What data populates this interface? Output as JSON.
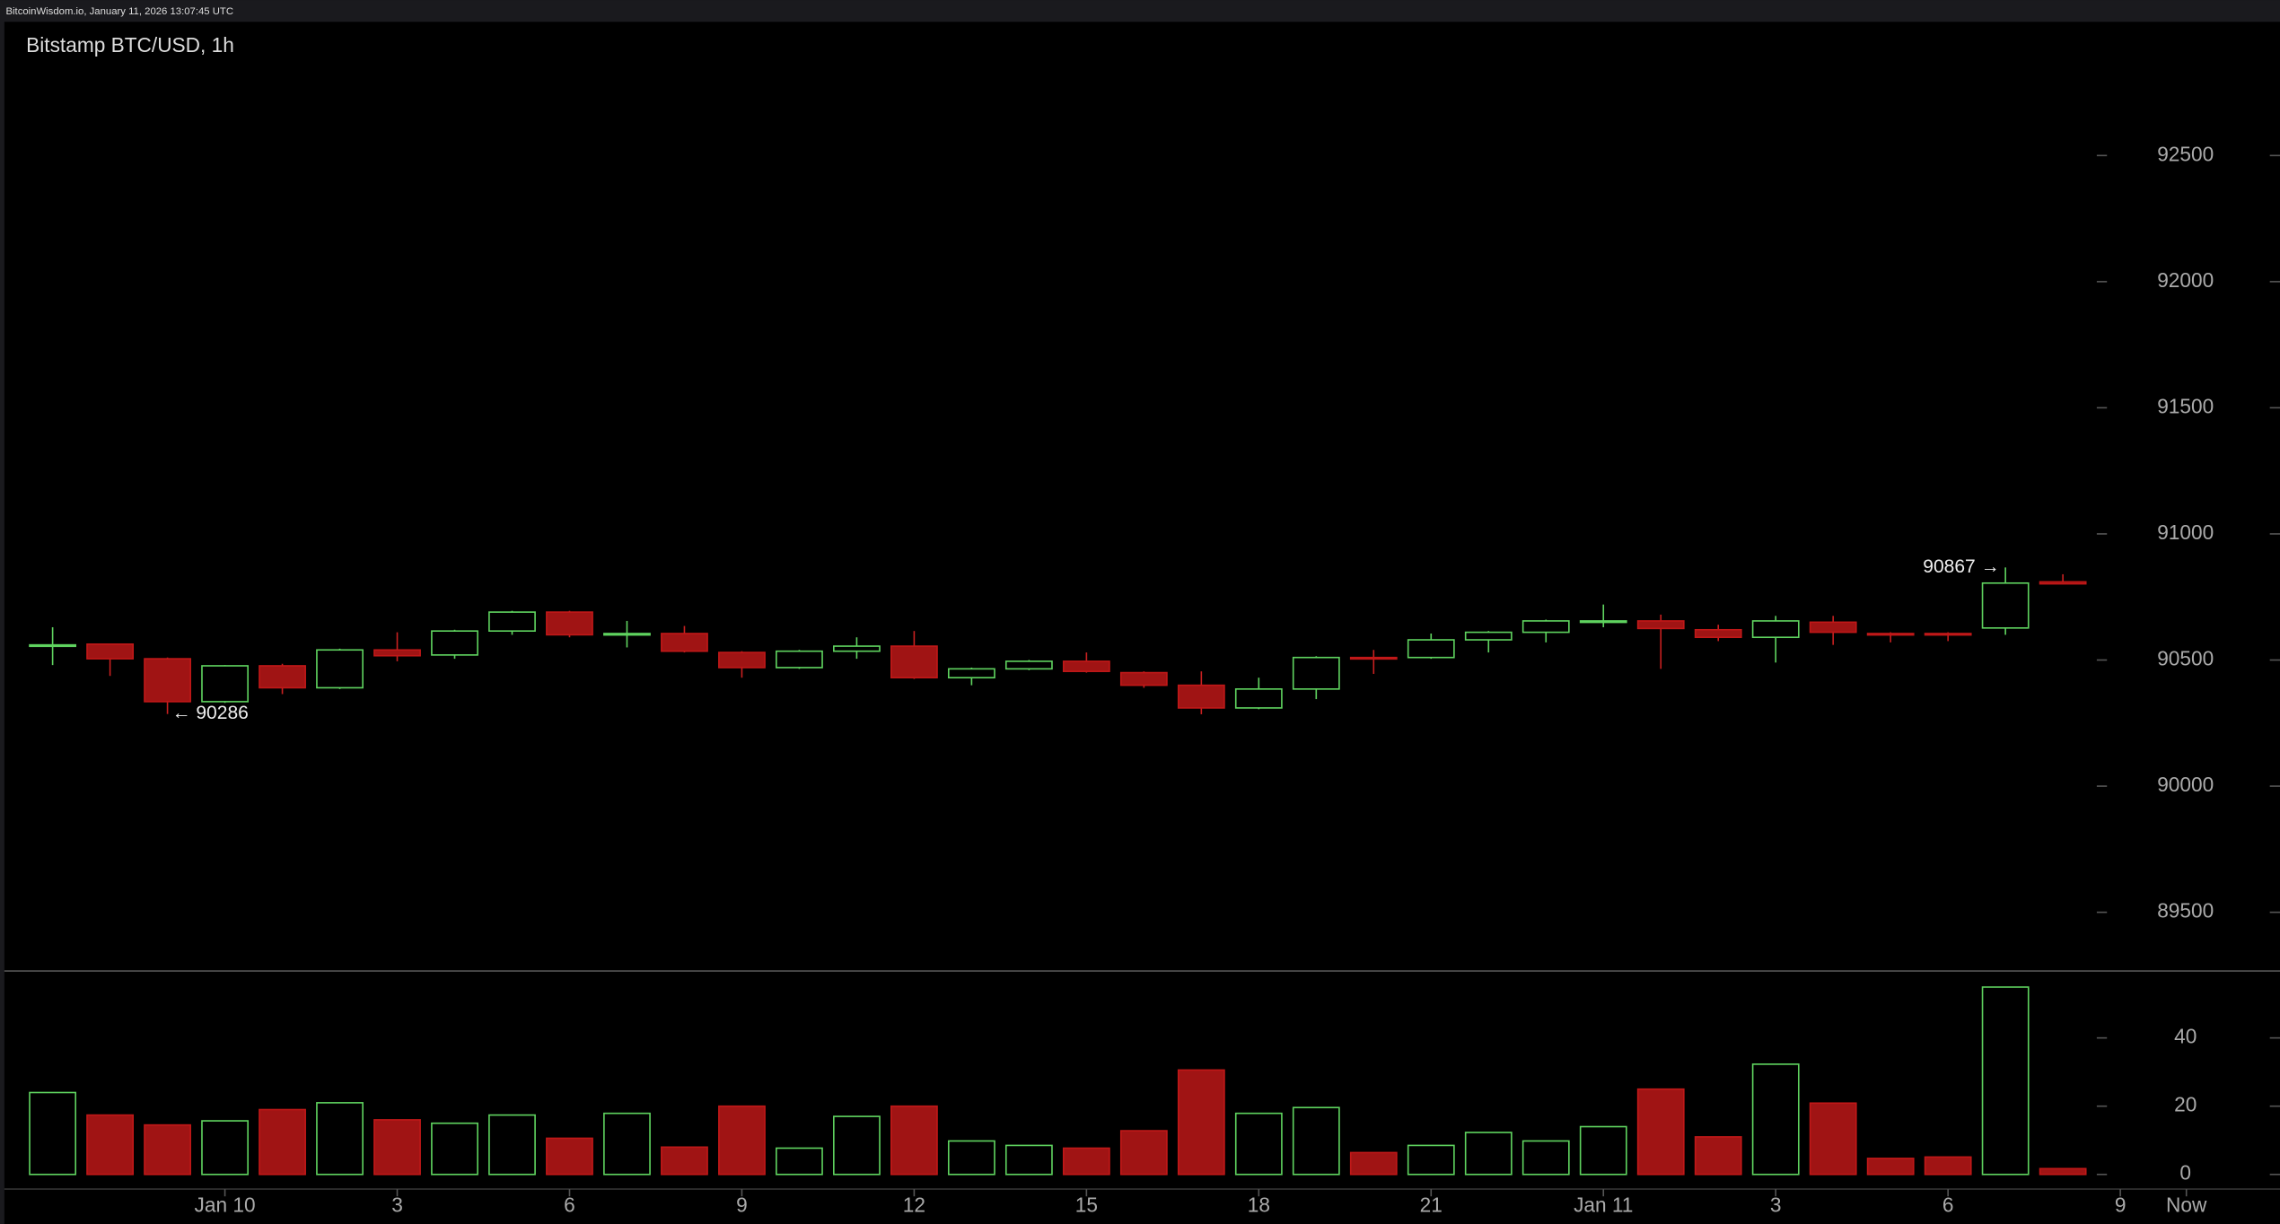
{
  "header": "BitcoinWisdom.io, January 11, 2026 13:07:45 UTC",
  "chart_data": {
    "type": "candlestick",
    "title": "Bitstamp BTC/USD, 1h",
    "up_color": "#5fd35f",
    "down_color": "#a01414",
    "open": [
      90555,
      90563,
      90505,
      90335,
      90477,
      90390,
      90540,
      90520,
      90615,
      90690,
      90600,
      90605,
      90530,
      90470,
      90535,
      90555,
      90430,
      90465,
      90495,
      90450,
      90400,
      90310,
      90385,
      90510,
      90510,
      90580,
      90610,
      90650,
      90655,
      90620,
      90590,
      90650,
      90605,
      90605,
      90627,
      90810
    ],
    "high": [
      90630,
      90565,
      90510,
      90480,
      90485,
      90545,
      90610,
      90620,
      90695,
      90695,
      90655,
      90635,
      90535,
      90540,
      90590,
      90615,
      90470,
      90500,
      90530,
      90455,
      90455,
      90430,
      90515,
      90540,
      90605,
      90615,
      90660,
      90720,
      90680,
      90640,
      90675,
      90675,
      90610,
      90610,
      90867,
      90840
    ],
    "low": [
      90480,
      90437,
      90286,
      90330,
      90365,
      90385,
      90495,
      90505,
      90600,
      90590,
      90550,
      90530,
      90430,
      90465,
      90505,
      90425,
      90400,
      90460,
      90450,
      90390,
      90285,
      90305,
      90345,
      90445,
      90505,
      90530,
      90570,
      90630,
      90465,
      90575,
      90490,
      90560,
      90570,
      90575,
      90600,
      90800
    ],
    "close": [
      90560,
      90505,
      90335,
      90477,
      90390,
      90540,
      90517,
      90615,
      90690,
      90600,
      90605,
      90535,
      90470,
      90535,
      90555,
      90430,
      90465,
      90495,
      90455,
      90400,
      90310,
      90385,
      90510,
      90505,
      90580,
      90610,
      90655,
      90655,
      90625,
      90590,
      90655,
      90610,
      90600,
      90600,
      90805,
      90802
    ],
    "volume": [
      24,
      17.4,
      14.5,
      15.7,
      19,
      21,
      16,
      15,
      17.4,
      10.6,
      17.9,
      8,
      20,
      7.7,
      17,
      20,
      9.8,
      8.5,
      7.7,
      12.8,
      30.6,
      17.9,
      19.6,
      6.4,
      8.5,
      12.3,
      9.8,
      14,
      25,
      11,
      32.3,
      20.9,
      4.7,
      5.1,
      54.9,
      1.7
    ],
    "xlim": [
      -0.84,
      38.78
    ],
    "xticks": [
      {
        "value": 3,
        "label": "Jan 10"
      },
      {
        "value": 6,
        "label": "3"
      },
      {
        "value": 9,
        "label": "6"
      },
      {
        "value": 12,
        "label": "9"
      },
      {
        "value": 15,
        "label": "12"
      },
      {
        "value": 18,
        "label": "15"
      },
      {
        "value": 21,
        "label": "18"
      },
      {
        "value": 24,
        "label": "21"
      },
      {
        "value": 27,
        "label": "Jan 11"
      },
      {
        "value": 30,
        "label": "3"
      },
      {
        "value": 33,
        "label": "6"
      },
      {
        "value": 36,
        "label": "9"
      },
      {
        "value": 37.15,
        "label": "Now"
      }
    ],
    "ylim": [
      89267,
      93030
    ],
    "yticks": [
      89500,
      90000,
      90500,
      91000,
      91500,
      92000,
      92500
    ],
    "volume_ylim": [
      -4.3,
      59.6
    ],
    "volume_yticks": [
      0,
      20,
      40
    ],
    "annotations": [
      {
        "candle": 2,
        "value": 90286,
        "label": "← 90286",
        "side": "right"
      },
      {
        "candle": 34,
        "value": 90867,
        "label": "90867 →",
        "side": "left"
      }
    ]
  }
}
